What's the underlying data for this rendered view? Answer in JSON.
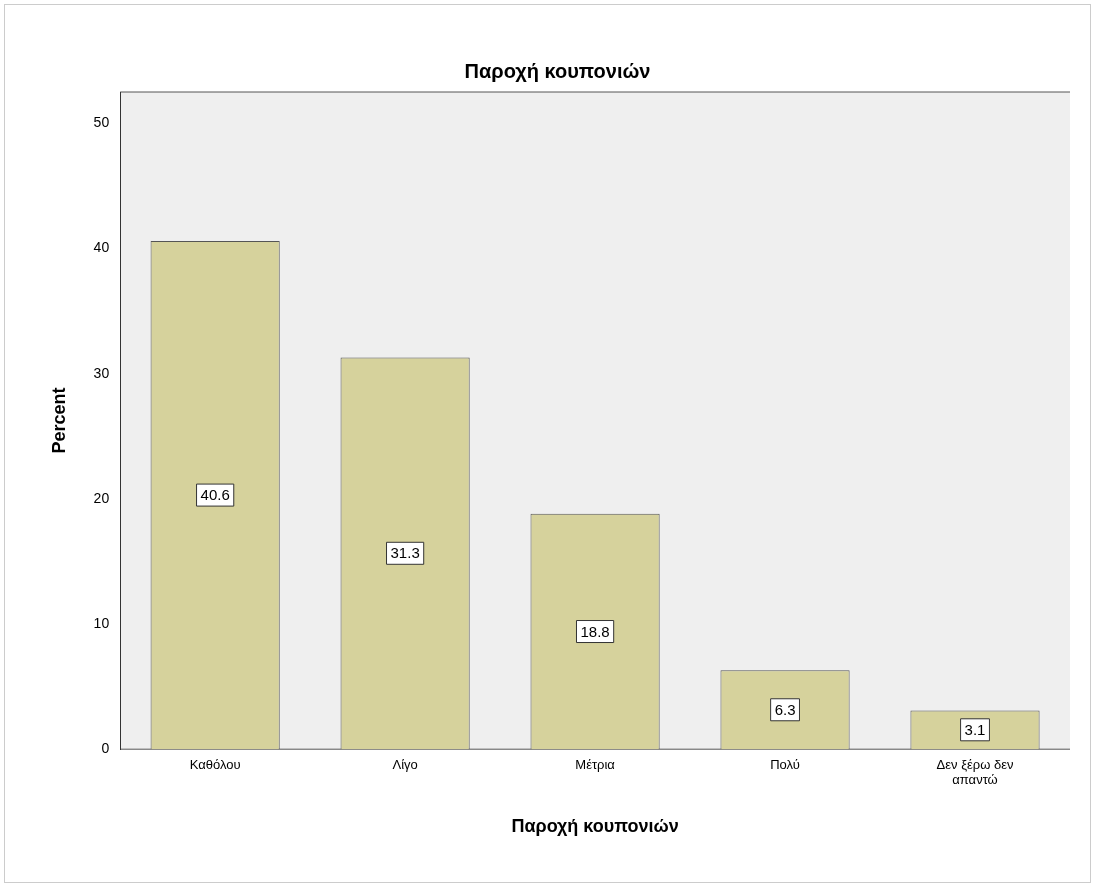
{
  "chart_data": {
    "type": "bar",
    "title": "Παροχή κουπονιών",
    "xlabel": "Παροχή κουπονιών",
    "ylabel": "Percent",
    "categories": [
      "Καθόλου",
      "Λίγο",
      "Μέτρια",
      "Πολύ",
      "Δεν ξέρω δεν απαντώ"
    ],
    "values": [
      40.6,
      31.3,
      18.8,
      6.3,
      3.1
    ],
    "color": "#d6d29c",
    "ylim": [
      0,
      52.5
    ],
    "yticks": [
      0,
      10,
      20,
      30,
      40,
      50
    ],
    "grid": false,
    "legend": false,
    "data_labels": true
  }
}
